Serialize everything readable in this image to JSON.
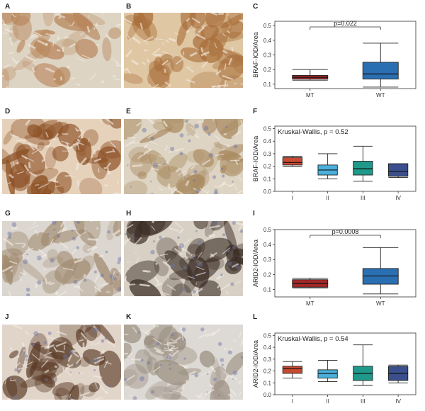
{
  "panel_letters": [
    "A",
    "B",
    "C",
    "D",
    "E",
    "F",
    "G",
    "H",
    "I",
    "J",
    "K",
    "L"
  ],
  "photos": [
    {
      "id": "A",
      "base": "#ddd4c3",
      "stain": "#b8855a",
      "density": 0.25,
      "blue": false
    },
    {
      "id": "B",
      "base": "#e0c7a3",
      "stain": "#a86e3a",
      "density": 0.55,
      "blue": false
    },
    {
      "id": "D",
      "base": "#e6d2bb",
      "stain": "#8c4f24",
      "density": 0.65,
      "blue": false
    },
    {
      "id": "E",
      "base": "#ded4c3",
      "stain": "#a98a60",
      "density": 0.4,
      "blue": true
    },
    {
      "id": "G",
      "base": "#dbd6cf",
      "stain": "#a08a6f",
      "density": 0.35,
      "blue": true
    },
    {
      "id": "H",
      "base": "#d8d0c4",
      "stain": "#3a2c24",
      "density": 0.5,
      "blue": true
    },
    {
      "id": "J",
      "base": "#e1d5c9",
      "stain": "#5a3a26",
      "density": 0.5,
      "blue": true
    },
    {
      "id": "K",
      "base": "#ddd9d4",
      "stain": "#9a8e80",
      "density": 0.3,
      "blue": true
    }
  ],
  "chart_data": [
    {
      "panel": "C",
      "type": "box",
      "ylabel": "BRAF-IOD/Area",
      "ylim": [
        0.07,
        0.53
      ],
      "yticks": [
        0.1,
        0.2,
        0.3,
        0.4,
        0.5
      ],
      "categories": [
        "MT",
        "WT"
      ],
      "annotation": "p=0.022",
      "boxes": [
        {
          "name": "MT",
          "color": "#a42828",
          "min": 0.127,
          "q1": 0.135,
          "median": 0.147,
          "q3": 0.16,
          "max": 0.2
        },
        {
          "name": "WT",
          "color": "#2b6fb3",
          "min": 0.08,
          "q1": 0.135,
          "median": 0.17,
          "q3": 0.25,
          "max": 0.38
        }
      ]
    },
    {
      "panel": "F",
      "type": "box",
      "ylabel": "BRAF-IOD/Area",
      "ylim": [
        0.0,
        0.52
      ],
      "yticks": [
        0.0,
        0.1,
        0.2,
        0.3,
        0.4,
        0.5
      ],
      "categories": [
        "I",
        "II",
        "III",
        "IV"
      ],
      "annotation": "Kruskal-Wallis, p = 0.52",
      "boxes": [
        {
          "name": "I",
          "color": "#c84a31",
          "min": 0.2,
          "q1": 0.21,
          "median": 0.23,
          "q3": 0.27,
          "max": 0.28
        },
        {
          "name": "II",
          "color": "#4ab0db",
          "min": 0.1,
          "q1": 0.13,
          "median": 0.17,
          "q3": 0.21,
          "max": 0.3
        },
        {
          "name": "III",
          "color": "#1f9a8a",
          "min": 0.08,
          "q1": 0.13,
          "median": 0.18,
          "q3": 0.24,
          "max": 0.36
        },
        {
          "name": "IV",
          "color": "#3a4f8c",
          "min": 0.11,
          "q1": 0.12,
          "median": 0.16,
          "q3": 0.22,
          "max": 0.22
        }
      ]
    },
    {
      "panel": "I",
      "type": "box",
      "ylabel": "ARID2-IOD/Area",
      "ylim": [
        0.05,
        0.5
      ],
      "yticks": [
        0.1,
        0.2,
        0.3,
        0.4,
        0.5
      ],
      "categories": [
        "MT",
        "WT"
      ],
      "annotation": "p=0.0008",
      "boxes": [
        {
          "name": "MT",
          "color": "#a42828",
          "min": 0.11,
          "q1": 0.115,
          "median": 0.14,
          "q3": 0.165,
          "max": 0.175
        },
        {
          "name": "WT",
          "color": "#2b6fb3",
          "min": 0.07,
          "q1": 0.135,
          "median": 0.19,
          "q3": 0.24,
          "max": 0.38
        }
      ]
    },
    {
      "panel": "L",
      "type": "box",
      "ylabel": "ARID2-IOD/Area",
      "ylim": [
        0.0,
        0.52
      ],
      "yticks": [
        0.0,
        0.1,
        0.2,
        0.3,
        0.4,
        0.5
      ],
      "categories": [
        "I",
        "II",
        "III",
        "IV"
      ],
      "annotation": "Kruskal-Wallis, p = 0.54",
      "boxes": [
        {
          "name": "I",
          "color": "#c84a31",
          "min": 0.14,
          "q1": 0.18,
          "median": 0.22,
          "q3": 0.24,
          "max": 0.28
        },
        {
          "name": "II",
          "color": "#4ab0db",
          "min": 0.11,
          "q1": 0.14,
          "median": 0.18,
          "q3": 0.21,
          "max": 0.29
        },
        {
          "name": "III",
          "color": "#1f9a8a",
          "min": 0.08,
          "q1": 0.12,
          "median": 0.18,
          "q3": 0.24,
          "max": 0.42
        },
        {
          "name": "IV",
          "color": "#3a4f8c",
          "min": 0.1,
          "q1": 0.12,
          "median": 0.18,
          "q3": 0.24,
          "max": 0.25
        }
      ]
    }
  ]
}
